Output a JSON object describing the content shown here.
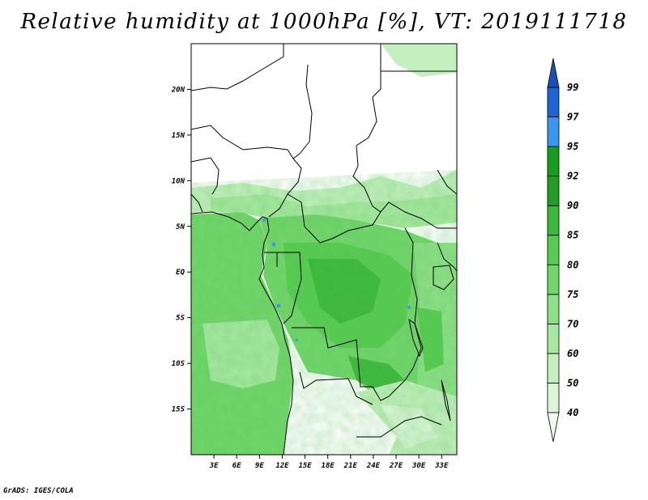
{
  "title": "Relative humidity at 1000hPa [%], VT: 2019111718",
  "credit": "GrADS: IGES/COLA",
  "map": {
    "lon_labels": [
      "3E",
      "6E",
      "9E",
      "12E",
      "15E",
      "18E",
      "21E",
      "24E",
      "27E",
      "30E",
      "33E"
    ],
    "lat_labels": [
      "20N",
      "15N",
      "10N",
      "5N",
      "EQ",
      "5S",
      "10S",
      "15S"
    ],
    "lon_range": [
      0,
      35
    ],
    "lat_range": [
      -20,
      25
    ]
  },
  "legend": {
    "levels": [
      "40",
      "50",
      "60",
      "70",
      "75",
      "80",
      "85",
      "90",
      "92",
      "95",
      "97",
      "99"
    ],
    "colors": [
      "#f0fbee",
      "#dcf6d8",
      "#c4f0bf",
      "#a8e9a2",
      "#8ee087",
      "#72d66b",
      "#56cc50",
      "#3cb83a",
      "#259c26",
      "#1a9a1e",
      "#3c96eb",
      "#1e64d2",
      "#1a50b4"
    ]
  }
}
